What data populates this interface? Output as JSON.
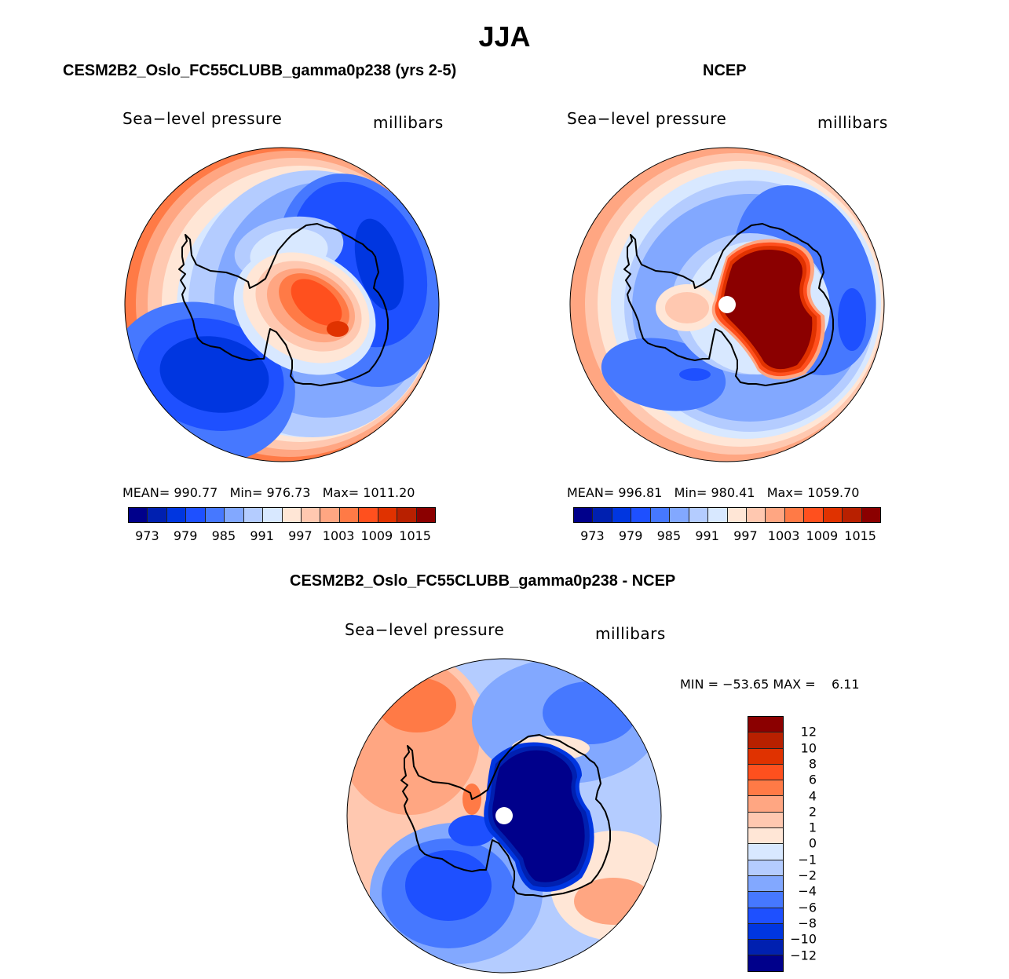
{
  "chart_data": [
    {
      "type": "heatmap",
      "projection": "south-polar-stereographic",
      "panel": "model",
      "title": "CESM2B2_Oslo_FC55CLUBB_gamma0p238 (yrs 2-5)",
      "variable": "Sea−level pressure",
      "units": "millibars",
      "stats": {
        "mean_label": "MEAN=",
        "mean": "990.77",
        "min_label": "Min=",
        "min": "976.73",
        "max_label": "Max=",
        "max": "1011.20"
      },
      "colorbar": {
        "orientation": "horizontal",
        "levels": [
          973,
          976,
          979,
          982,
          985,
          988,
          991,
          994,
          997,
          1000,
          1003,
          1006,
          1009,
          1012,
          1015
        ],
        "tick_labels": [
          "973",
          "979",
          "985",
          "991",
          "997",
          "1003",
          "1009",
          "1015"
        ],
        "colors": [
          "#00008b",
          "#0020b0",
          "#0036e0",
          "#1e50ff",
          "#4678ff",
          "#82a8ff",
          "#b4ccff",
          "#d8e8ff",
          "#ffe6d6",
          "#ffc8b0",
          "#ffa682",
          "#ff7a46",
          "#ff501e",
          "#e03200",
          "#b82000",
          "#8b0000"
        ]
      },
      "features": {
        "antarctica_center_value": "high (~1006-1009)",
        "amundsen_sea_low": "low (~976-979)"
      }
    },
    {
      "type": "heatmap",
      "projection": "south-polar-stereographic",
      "panel": "observations",
      "title": "NCEP",
      "variable": "Sea−level pressure",
      "units": "millibars",
      "stats": {
        "mean_label": "MEAN=",
        "mean": "996.81",
        "min_label": "Min=",
        "min": "980.41",
        "max_label": "Max=",
        "max": "1059.70"
      },
      "colorbar": {
        "orientation": "horizontal",
        "levels": [
          973,
          976,
          979,
          982,
          985,
          988,
          991,
          994,
          997,
          1000,
          1003,
          1006,
          1009,
          1012,
          1015
        ],
        "tick_labels": [
          "973",
          "979",
          "985",
          "991",
          "997",
          "1003",
          "1009",
          "1015"
        ],
        "colors": [
          "#00008b",
          "#0020b0",
          "#0036e0",
          "#1e50ff",
          "#4678ff",
          "#82a8ff",
          "#b4ccff",
          "#d8e8ff",
          "#ffe6d6",
          "#ffc8b0",
          "#ffa682",
          "#ff7a46",
          "#ff501e",
          "#e03200",
          "#b82000",
          "#8b0000"
        ]
      },
      "features": {
        "antarctica_center_value": ">1015 (saturated)",
        "pole_missing": true
      }
    },
    {
      "type": "heatmap",
      "projection": "south-polar-stereographic",
      "panel": "difference",
      "title": "CESM2B2_Oslo_FC55CLUBB_gamma0p238 - NCEP",
      "variable": "Sea−level pressure",
      "units": "millibars",
      "stats": {
        "min_label": "MIN =",
        "min": "−53.65",
        "max_label": "MAX =",
        "max": "6.11"
      },
      "colorbar": {
        "orientation": "vertical",
        "tick_labels": [
          "12",
          "10",
          "8",
          "6",
          "4",
          "2",
          "1",
          "0",
          "−1",
          "−2",
          "−4",
          "−6",
          "−8",
          "−10",
          "−12"
        ],
        "levels": [
          12,
          10,
          8,
          6,
          4,
          2,
          1,
          0,
          -1,
          -2,
          -4,
          -6,
          -8,
          -10,
          -12
        ],
        "colors": [
          "#8b0000",
          "#b82000",
          "#e03200",
          "#ff501e",
          "#ff7a46",
          "#ffa682",
          "#ffc8b0",
          "#ffe6d6",
          "#d8e8ff",
          "#b4ccff",
          "#82a8ff",
          "#4678ff",
          "#1e50ff",
          "#0036e0",
          "#0020b0",
          "#00008b"
        ]
      },
      "features": {
        "antarctica_center_value": "< -12 (saturated)",
        "pole_missing": true
      }
    }
  ],
  "page": {
    "season_title": "JJA"
  }
}
